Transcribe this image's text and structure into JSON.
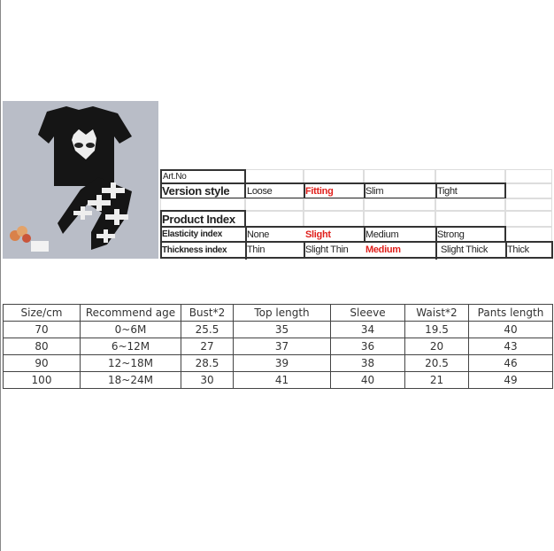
{
  "spec": {
    "art_no": "Art.No",
    "version_style": {
      "label": "Version style",
      "options": [
        "Loose",
        "Fitting",
        "Slim",
        "Tight"
      ],
      "selected": "Fitting"
    },
    "product_index": "Product Index",
    "elasticity": {
      "label": "Elasticity index",
      "options": [
        "None",
        "Slight",
        "Medium",
        "Strong"
      ],
      "selected": "Slight"
    },
    "thickness": {
      "label": "Thickness index",
      "options": [
        "Thin",
        "Slight Thin",
        "Medium",
        "Slight Thick",
        "Thick"
      ],
      "selected": "Medium"
    },
    "highlight_color": "#e0201c"
  },
  "size_table": {
    "headers": [
      "Size/cm",
      "Recommend age",
      "Bust*2",
      "Top length",
      "Sleeve",
      "Waist*2",
      "Pants length"
    ],
    "rows": [
      [
        "70",
        "0~6M",
        "25.5",
        "35",
        "34",
        "19.5",
        "40"
      ],
      [
        "80",
        "6~12M",
        "27",
        "37",
        "36",
        "20",
        "43"
      ],
      [
        "90",
        "12~18M",
        "28.5",
        "39",
        "38",
        "20.5",
        "46"
      ],
      [
        "100",
        "18~24M",
        "30",
        "41",
        "40",
        "21",
        "49"
      ]
    ]
  }
}
